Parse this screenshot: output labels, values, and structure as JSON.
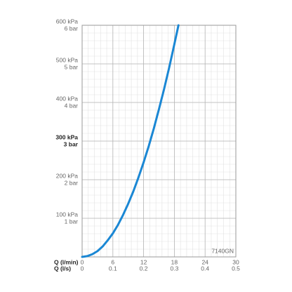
{
  "chart_data": {
    "type": "line",
    "x": [
      0,
      1,
      2,
      3,
      4,
      5,
      6,
      7,
      8,
      9,
      10,
      11,
      12,
      13,
      14,
      15,
      16,
      17,
      18,
      18.8
    ],
    "series": [
      {
        "color": "#1a87d4",
        "values": [
          0,
          2,
          7,
          15,
          27,
          43,
          61,
          83,
          109,
          138,
          170,
          206,
          245,
          287,
          333,
          383,
          435,
          491,
          551,
          600
        ]
      }
    ],
    "xlim": [
      0,
      30
    ],
    "xticks": [
      0,
      6,
      12,
      18,
      24,
      30
    ],
    "xlabel": "Q (l/min)",
    "x2lim": [
      0,
      0.5
    ],
    "x2ticks": [
      0,
      0.1,
      0.2,
      0.3,
      0.4,
      0.5
    ],
    "x2label": "Q (l/s)",
    "ylim": [
      0,
      600
    ],
    "yticks": [
      {
        "value": 100,
        "label": "100 kPa"
      },
      {
        "value": 200,
        "label": "200 kPa"
      },
      {
        "value": 300,
        "label": "300 kPa"
      },
      {
        "value": 400,
        "label": "400 kPa"
      },
      {
        "value": 500,
        "label": "500 kPa"
      },
      {
        "value": 600,
        "label": "600 kPa"
      }
    ],
    "y2lim": [
      0,
      6
    ],
    "y2ticks": [
      {
        "value": 1,
        "label": "1 bar"
      },
      {
        "value": 2,
        "label": "2 bar"
      },
      {
        "value": 3,
        "label": "3 bar"
      },
      {
        "value": 4,
        "label": "4 bar"
      },
      {
        "value": 5,
        "label": "5 bar"
      },
      {
        "value": 6,
        "label": "6 bar"
      }
    ],
    "highlight_ytick": 300,
    "grid": true,
    "minor_divisions": 5,
    "annotation": "7140GN"
  }
}
